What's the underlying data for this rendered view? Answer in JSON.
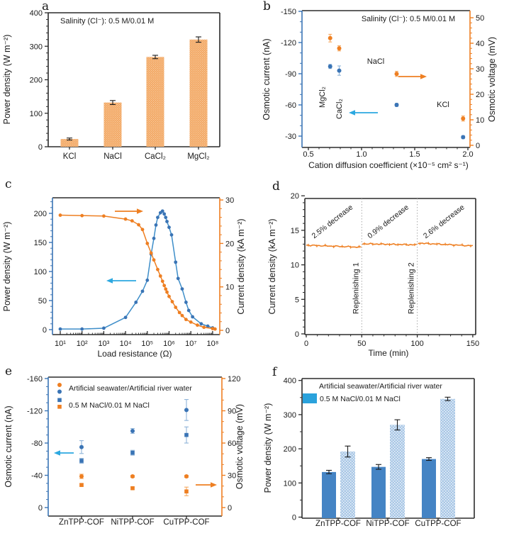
{
  "colors": {
    "orange": "#ee7f22",
    "orange_light": "#f5aa63",
    "orange_bar": "#f2a55e",
    "blue": "#3a74b5",
    "blue_light": "#8fb4d9",
    "blue_line": "#3e8ec9",
    "blue_arrow": "#2ca8e0",
    "blue_bar_solid": "#4584c4",
    "blue_bar_hatch": "#a9c7e6",
    "blue_legend_swatch": "#2aa2dc",
    "axis": "#2b2b2b",
    "text": "#1a1a1a",
    "error_bar": "#1a1a1a",
    "event_line": "#a8a8a8"
  },
  "chart_data": [
    {
      "panel_label": "a",
      "type": "bar",
      "annotation": "Salinity (Cl⁻): 0.5 M/0.01 M",
      "ylabel": "Power density (W m⁻²)",
      "categories": [
        "KCl",
        "NaCl",
        "CaCl₂",
        "MgCl₂"
      ],
      "values": [
        23,
        132,
        268,
        320
      ],
      "errors": [
        3,
        6,
        5,
        8
      ],
      "ylim": [
        0,
        400
      ],
      "yticks": [
        0,
        100,
        200,
        300,
        400
      ]
    },
    {
      "panel_label": "b",
      "type": "scatter-dual",
      "annotation": "Salinity (Cl⁻): 0.5 M/0.01 M",
      "xlabel": "Cation diffusion coefficient (×10⁻⁵ cm² s⁻¹)",
      "ylabel_left": "Osmotic current (nA)",
      "ylabel_right": "Osmotic voltage (mV)",
      "xticks": [
        0.5,
        1.0,
        1.5,
        2.0
      ],
      "xtick_labels": [
        "0.5",
        "1.0",
        "1.5",
        "2.0"
      ],
      "yticks_left": [
        -150,
        -120,
        -90,
        -60,
        -30
      ],
      "yticks_right": [
        0,
        10,
        20,
        30,
        40,
        50
      ],
      "points": [
        {
          "label": "MgCl₂",
          "x": 0.705,
          "current": -97,
          "current_err": 2,
          "voltage": 42,
          "voltage_err": 1.5,
          "label_rotated": true
        },
        {
          "label": "CaCl₂",
          "x": 0.79,
          "current": -93,
          "current_err": 4.5,
          "voltage": 38,
          "voltage_err": 1,
          "label_rotated": true
        },
        {
          "label": "NaCl",
          "x": 1.33,
          "current": -60,
          "current_err": 1.5,
          "voltage": 28,
          "voltage_err": 1,
          "label_rotated": false
        },
        {
          "label": "KCl",
          "x": 1.955,
          "current": -29,
          "current_err": 1.5,
          "voltage": 10.5,
          "voltage_err": 1,
          "label_rotated": false
        }
      ]
    },
    {
      "panel_label": "c",
      "type": "line-dual-log",
      "xlabel": "Load resistance (Ω)",
      "ylabel_left": "Power density (W m⁻²)",
      "ylabel_right": "Current density (kA m⁻²)",
      "xtick_labels": [
        "10¹",
        "10²",
        "10³",
        "10⁴",
        "10⁵",
        "10⁶",
        "10⁷",
        "10⁸"
      ],
      "yticks_left": [
        0,
        50,
        100,
        150,
        200
      ],
      "yticks_right": [
        0,
        10,
        20,
        30
      ],
      "series": [
        {
          "name": "Power density",
          "axis": "left",
          "x": [
            10,
            100,
            1000,
            10000,
            30000,
            60000,
            100000,
            150000,
            200000,
            250000,
            300000,
            400000,
            500000,
            600000,
            700000,
            800000,
            1000000,
            1300000,
            2000000,
            2600000,
            4000000,
            6000000,
            8000000,
            12000000,
            30000000,
            60000000,
            100000000
          ],
          "y": [
            1,
            1,
            2.5,
            21,
            47,
            66,
            85,
            130,
            157,
            180,
            193,
            201,
            204,
            199,
            193,
            186,
            176,
            163,
            116,
            88,
            70,
            47,
            33,
            22,
            10,
            6,
            3
          ]
        },
        {
          "name": "Current density",
          "axis": "right",
          "x": [
            10,
            100,
            1000,
            10000,
            20000,
            40000,
            60000,
            100000,
            150000,
            200000,
            300000,
            400000,
            500000,
            600000,
            700000,
            800000,
            1000000,
            1400000,
            2000000,
            3000000,
            4000000,
            6000000,
            10000000,
            20000000,
            40000000,
            100000000,
            130000000
          ],
          "y": [
            26.5,
            26.4,
            26.3,
            25.6,
            25.2,
            24.3,
            23.2,
            20,
            17.8,
            16.2,
            14,
            12.5,
            11.3,
            10.3,
            9.5,
            8.8,
            7.8,
            6.6,
            5.3,
            4.1,
            3.4,
            2.5,
            1.9,
            1.2,
            0.7,
            0.4,
            0.3
          ]
        }
      ]
    },
    {
      "panel_label": "d",
      "type": "line-stability",
      "xlabel": "Time (min)",
      "ylabel": "Current density (kA m⁻²)",
      "xticks": [
        0,
        50,
        100,
        150
      ],
      "yticks": [
        0,
        5,
        10,
        15,
        20
      ],
      "segments": [
        {
          "x0": 0,
          "y0": 12.85,
          "x1": 49.5,
          "y1": 12.55,
          "label": "2.5% decrease"
        },
        {
          "x0": 50.5,
          "y0": 13.05,
          "x1": 99.5,
          "y1": 12.9,
          "label": "0.9% decrease"
        },
        {
          "x0": 100.5,
          "y0": 13.15,
          "x1": 150,
          "y1": 12.75,
          "label": "2.6% decrease"
        }
      ],
      "events": [
        {
          "x": 50,
          "label": "Replenishing 1"
        },
        {
          "x": 100,
          "label": "Replenishing 2"
        }
      ]
    },
    {
      "panel_label": "e",
      "type": "scatter-dual-category",
      "ylabel_left": "Osmotic current (nA)",
      "ylabel_right": "Osmotic voltage (mV)",
      "categories": [
        "ZnTPP-COF",
        "NiTPP-COF",
        "CuTPP-COF"
      ],
      "yticks_left": [
        -160,
        -120,
        -80,
        -40,
        0
      ],
      "yticks_right": [
        0,
        30,
        60,
        90,
        120
      ],
      "legend": [
        {
          "label": "Artificial seawater/Artificial river water",
          "marker": "circle"
        },
        {
          "label": "0.5 M NaCl/0.01 M NaCl",
          "marker": "square"
        }
      ],
      "series": {
        "seawater_current": {
          "values": [
            -75,
            -95,
            -121
          ],
          "errors": [
            8,
            3,
            13
          ]
        },
        "nacl_current": {
          "values": [
            -58,
            -68,
            -90
          ],
          "errors": [
            3,
            3,
            10
          ]
        },
        "seawater_voltage": {
          "values": [
            29,
            29,
            29
          ],
          "errors": [
            2,
            1,
            1
          ]
        },
        "nacl_voltage": {
          "values": [
            21,
            18,
            15
          ],
          "errors": [
            1,
            1,
            4
          ]
        }
      }
    },
    {
      "panel_label": "f",
      "type": "bar-grouped",
      "ylabel": "Power density (W m⁻²)",
      "categories": [
        "ZnTPP-COF",
        "NiTPP-COF",
        "CuTPP-COF"
      ],
      "ylim": [
        0,
        400
      ],
      "yticks": [
        0,
        100,
        200,
        300,
        400
      ],
      "legend": [
        {
          "label": "Artificial seawater/Artificial river water",
          "swatch": "none"
        },
        {
          "label": "0.5 M NaCl/0.01 M NaCl",
          "swatch": "solid"
        }
      ],
      "series": [
        {
          "name": "0.5 M NaCl/0.01 M NaCl",
          "style": "solid",
          "values": [
            132,
            147,
            170
          ],
          "errors": [
            5,
            7,
            4
          ]
        },
        {
          "name": "Artificial seawater/Artificial river water",
          "style": "hatched",
          "values": [
            192,
            270,
            346
          ],
          "errors": [
            16,
            15,
            5
          ]
        }
      ]
    }
  ]
}
